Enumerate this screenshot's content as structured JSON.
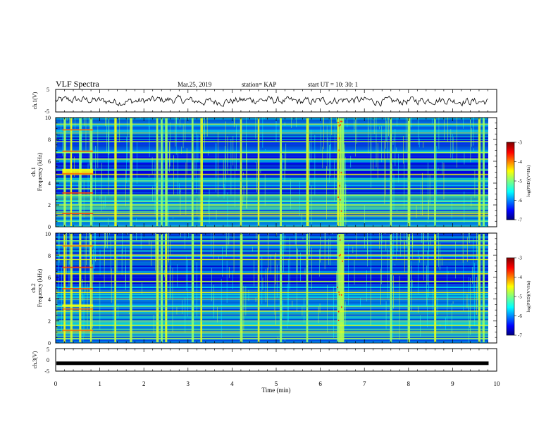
{
  "header": {
    "title": "VLF Spectra",
    "date": "Mar.25, 2019",
    "station": "station= KAP",
    "start": "start  UT =    10: 30: 1"
  },
  "chart_data": {
    "type": "heatmap",
    "xlabel": "Time  (min)",
    "xlim": [
      0,
      10
    ],
    "xticks": [
      "0",
      "1",
      "2",
      "3",
      "4",
      "5",
      "6",
      "7",
      "8",
      "9",
      "10"
    ],
    "data_end_min": 9.8,
    "panels": [
      {
        "kind": "waveform",
        "ylabel": "ch.1(V)",
        "ylim": [
          -5,
          5
        ],
        "yticks": [
          "5",
          "-5"
        ],
        "trace_mean_v": 0.0,
        "trace_amplitude_v": 1.8
      },
      {
        "kind": "spectrogram",
        "ylabel": "ch.1\nFrequency  (kHz)",
        "ylim": [
          0,
          10
        ],
        "yticks": [
          "0",
          "2",
          "4",
          "6",
          "8",
          "10"
        ],
        "colorbar": {
          "label": "log(PSD)(V²/Hz)",
          "range": [
            -7,
            -3
          ],
          "ticks": [
            "-3",
            "-4",
            "-5",
            "-6",
            "-7"
          ]
        },
        "horizontal_lines_khz": [
          0.5,
          1.0,
          1.2,
          2.0,
          2.3,
          2.9,
          3.5,
          4.2,
          4.8,
          5.2,
          6.2,
          6.8,
          7.8,
          8.6,
          9.4
        ],
        "early_band_khz": [
          4.8,
          5.3
        ],
        "early_band_min": [
          0.15,
          0.85
        ],
        "bursts_min": [
          0.2,
          0.35,
          0.55,
          0.8,
          1.35,
          1.7,
          2.3,
          2.4,
          2.5,
          3.1,
          3.3,
          4.2,
          4.6,
          5.1,
          5.7,
          6.4,
          6.45,
          6.5,
          7.6,
          8.0,
          8.6,
          9.6,
          9.7
        ]
      },
      {
        "kind": "spectrogram",
        "ylabel": "ch.2\nFrequency  (kHz)",
        "ylim": [
          0,
          10
        ],
        "yticks": [
          "0",
          "2",
          "4",
          "6",
          "8",
          "10"
        ],
        "colorbar": {
          "label": "log(PSD)(V²/Hz)",
          "range": [
            -7,
            -3
          ],
          "ticks": [
            "-3",
            "-4",
            "-5",
            "-6",
            "-7"
          ]
        },
        "horizontal_lines_khz": [
          0.4,
          1.0,
          1.6,
          2.0,
          2.9,
          3.3,
          4.0,
          4.6,
          5.6,
          6.3,
          7.6,
          8.0,
          8.9,
          9.3
        ],
        "early_band_khz": [
          3.3,
          3.5
        ],
        "early_band_min": [
          0.15,
          0.85
        ],
        "bursts_min": [
          0.2,
          0.35,
          0.55,
          0.8,
          1.35,
          1.7,
          2.3,
          2.4,
          2.5,
          3.1,
          3.3,
          4.2,
          4.6,
          5.1,
          5.7,
          6.4,
          6.45,
          6.5,
          7.6,
          8.0,
          8.6,
          9.6,
          9.7
        ]
      },
      {
        "kind": "flat",
        "ylabel": "ch.3(V)",
        "ylim": [
          -5,
          5
        ],
        "yticks": [
          "5",
          "0",
          "-5"
        ],
        "level_v": -1.5
      }
    ]
  }
}
